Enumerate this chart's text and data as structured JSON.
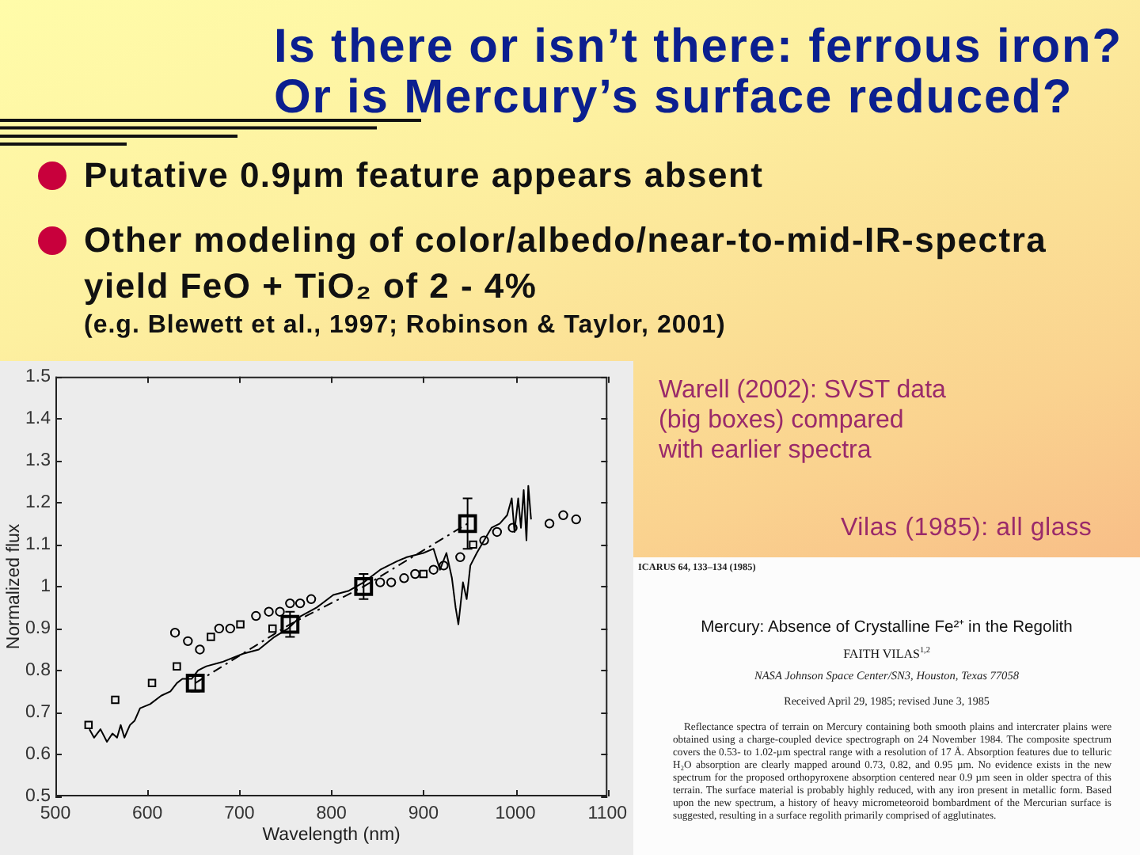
{
  "chart_data": {
    "type": "line",
    "title": "Is there or isn’t there: ferrous iron? Or is Mercury’s surface reduced?",
    "xlabel": "Wavelength (nm)",
    "ylabel": "Normalized flux",
    "xlim": [
      500,
      1100
    ],
    "xticks": [
      500,
      600,
      700,
      800,
      900,
      1000,
      1100
    ],
    "ylim": [
      0.5,
      1.5
    ],
    "yticks": [
      0.5,
      0.6,
      0.7,
      0.8,
      0.9,
      1,
      1.1,
      1.2,
      1.3,
      1.4,
      1.5
    ],
    "series": [
      {
        "type": "scatter",
        "marker": "circle",
        "color": "#000000",
        "x": [
          630,
          644,
          657,
          678,
          690,
          718,
          732,
          744,
          755,
          766,
          778,
          853,
          865,
          879,
          891,
          911,
          922,
          940,
          966,
          980,
          997,
          1037,
          1052,
          1066
        ],
        "values": [
          0.89,
          0.87,
          0.85,
          0.9,
          0.9,
          0.93,
          0.94,
          0.94,
          0.96,
          0.96,
          0.97,
          1.01,
          1.01,
          1.02,
          1.03,
          1.04,
          1.05,
          1.07,
          1.11,
          1.13,
          1.14,
          1.15,
          1.17,
          1.16
        ]
      },
      {
        "type": "scatter",
        "marker": "square",
        "color": "#000000",
        "x": [
          536,
          565,
          605,
          632,
          669,
          701,
          736,
          900,
          954
        ],
        "values": [
          0.67,
          0.73,
          0.77,
          0.81,
          0.88,
          0.91,
          0.9,
          1.03,
          1.1
        ]
      },
      {
        "type": "line",
        "marker": "none",
        "color": "#000000",
        "x": [
          537,
          542,
          549,
          556,
          562,
          567,
          571,
          575,
          581,
          586,
          592,
          603,
          615,
          625,
          632,
          638,
          648,
          655,
          664,
          681,
          704,
          721,
          738,
          753,
          767,
          784,
          802,
          819,
          835,
          853,
          871,
          882,
          900,
          911,
          918,
          925,
          931,
          935,
          938,
          943,
          947,
          951,
          958,
          966,
          974,
          983,
          991,
          996,
          999,
          1003,
          1006,
          1009,
          1012,
          1014,
          1017
        ],
        "values": [
          0.66,
          0.64,
          0.66,
          0.63,
          0.65,
          0.64,
          0.67,
          0.64,
          0.67,
          0.68,
          0.71,
          0.72,
          0.74,
          0.75,
          0.77,
          0.78,
          0.78,
          0.8,
          0.81,
          0.82,
          0.84,
          0.85,
          0.88,
          0.9,
          0.93,
          0.95,
          0.98,
          0.99,
          1.01,
          1.04,
          1.06,
          1.07,
          1.08,
          1.09,
          1.04,
          1.08,
          1.02,
          0.95,
          0.91,
          1.01,
          0.97,
          1.05,
          1.08,
          1.11,
          1.14,
          1.15,
          1.17,
          1.21,
          1.13,
          1.21,
          1.14,
          1.23,
          1.11,
          1.24,
          1.16
        ]
      },
      {
        "type": "line",
        "marker": "square",
        "line_style": "dashed",
        "color": "#000000",
        "x": [
          652,
          755,
          835,
          948
        ],
        "values": [
          0.77,
          0.91,
          1.0,
          1.15
        ],
        "errors": [
          0.02,
          0.03,
          0.03,
          0.06
        ]
      }
    ],
    "annotations": [
      "Putative 0.9µm feature appears absent",
      "Other modeling of color/albedo/near-to-mid-IR-spectra yield FeO + TiO₂ of 2 - 4%",
      "(e.g. Blewett et al., 1997; Robinson & Taylor, 2001)",
      "Warell (2002): SVST data (big boxes) compared with earlier spectra",
      "Vilas (1985): all glass",
      "ICARUS 64, 133–134 (1985)",
      "Mercury: Absence of Crystalline Fe²⁺ in the Regolith",
      "FAITH VILAS$^{1,2}$",
      "NASA Johnson Space Center/SN3, Houston, Texas 77058",
      "Received April 29, 1985; revised June 3, 1985",
      "Reflectance spectra of terrain on Mercury containing both smooth plains and intercrater plains were obtained using a charge-coupled device spectrograph on 24 November 1984. The composite spectrum covers the 0.53- to 1.02-µm spectral range with a resolution of 17 Å. Absorption features due to telluric H₂O absorption are clearly mapped around 0.73, 0.82, and 0.95 µm. No evidence exists in the new spectrum for the proposed orthopyroxene absorption centered near 0.9 µm seen in older spectra of this terrain. The surface material is probably highly reduced, with any iron present in metallic form. Based upon the new spectrum, a history of heavy micrometeoroid bombardment of the Mercurian surface is suggested, resulting in a surface regolith primarily comprised of agglutinates."
    ]
  }
}
